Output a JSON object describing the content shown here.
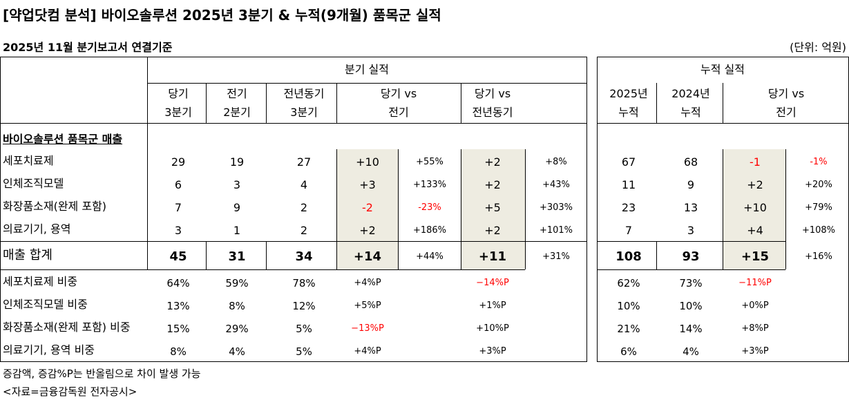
{
  "title": "[약업닷컴 분석] 바이오솔루션 2025년 3분기 & 누적(9개월) 품목군 실적",
  "subtitle": "2025년 11월 분기보고서 연결기준",
  "unit": "(단위: 억원)",
  "colors": {
    "shade": "#eeece1",
    "negative": "#ff0000"
  },
  "quarter": {
    "group_label": "분기 실적",
    "headers": [
      [
        "당기",
        "3분기"
      ],
      [
        "전기",
        "2분기"
      ],
      [
        "전년동기",
        "3분기"
      ],
      [
        "당기 vs",
        "전기"
      ],
      [
        "당기 vs",
        "전년동기"
      ]
    ]
  },
  "cumulative": {
    "group_label": "누적 실적",
    "headers": [
      [
        "2025년",
        "누적"
      ],
      [
        "2024년",
        "누적"
      ],
      [
        "당기 vs",
        "전기"
      ]
    ]
  },
  "section_label": "바이오솔루션 품목군 매출",
  "rows": [
    {
      "label": "세포치료제",
      "q": [
        "29",
        "19",
        "27",
        "+10",
        "+55%",
        "+2",
        "+8%"
      ],
      "c": [
        "67",
        "68",
        "-1",
        "-1%"
      ]
    },
    {
      "label": "인체조직모델",
      "q": [
        "6",
        "3",
        "4",
        "+3",
        "+133%",
        "+2",
        "+43%"
      ],
      "c": [
        "11",
        "9",
        "+2",
        "+20%"
      ]
    },
    {
      "label": "화장품소재(완제 포함)",
      "q": [
        "7",
        "9",
        "2",
        "-2",
        "-23%",
        "+5",
        "+303%"
      ],
      "c": [
        "23",
        "13",
        "+10",
        "+79%"
      ]
    },
    {
      "label": "의료기기, 용역",
      "q": [
        "3",
        "1",
        "2",
        "+2",
        "+186%",
        "+2",
        "+101%"
      ],
      "c": [
        "7",
        "3",
        "+4",
        "+108%"
      ]
    }
  ],
  "total": {
    "label": "매출 합계",
    "q": [
      "45",
      "31",
      "34",
      "+14",
      "+44%",
      "+11",
      "+31%"
    ],
    "c": [
      "108",
      "93",
      "+15",
      "+16%"
    ]
  },
  "ratios": [
    {
      "label": "세포치료제 비중",
      "q": [
        "64%",
        "59%",
        "78%",
        "+4%P",
        "−14%P"
      ],
      "c": [
        "62%",
        "73%",
        "−11%P"
      ]
    },
    {
      "label": "인체조직모델 비중",
      "q": [
        "13%",
        "8%",
        "12%",
        "+5%P",
        "+1%P"
      ],
      "c": [
        "10%",
        "10%",
        "+0%P"
      ]
    },
    {
      "label": "화장품소재(완제 포함) 비중",
      "q": [
        "15%",
        "29%",
        "5%",
        "−13%P",
        "+10%P"
      ],
      "c": [
        "21%",
        "14%",
        "+8%P"
      ]
    },
    {
      "label": "의료기기, 용역 비중",
      "q": [
        "8%",
        "4%",
        "5%",
        "+4%P",
        "+3%P"
      ],
      "c": [
        "6%",
        "4%",
        "+3%P"
      ]
    }
  ],
  "footnote": "증감액, 증감%P는 반올림으로 차이 발생 가능",
  "source": "<자료=금융감독원 전자공시>"
}
